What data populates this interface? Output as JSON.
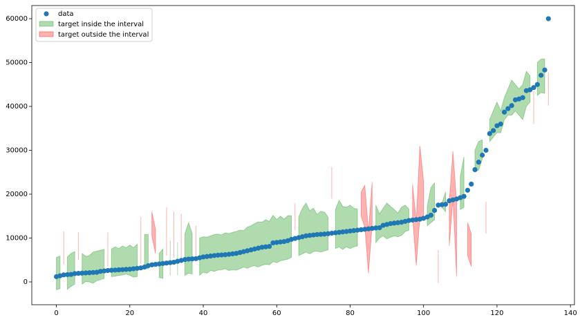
{
  "chart_data": {
    "type": "scatter_interval",
    "x": [
      0,
      1,
      2,
      3,
      4,
      5,
      6,
      7,
      8,
      9,
      10,
      11,
      12,
      13,
      14,
      15,
      16,
      17,
      18,
      19,
      20,
      21,
      22,
      23,
      24,
      25,
      26,
      27,
      28,
      29,
      30,
      31,
      32,
      33,
      34,
      35,
      36,
      37,
      38,
      39,
      40,
      41,
      42,
      43,
      44,
      45,
      46,
      47,
      48,
      49,
      50,
      51,
      52,
      53,
      54,
      55,
      56,
      57,
      58,
      59,
      60,
      61,
      62,
      63,
      64,
      65,
      66,
      67,
      68,
      69,
      70,
      71,
      72,
      73,
      74,
      75,
      76,
      77,
      78,
      79,
      80,
      81,
      82,
      83,
      84,
      85,
      86,
      87,
      88,
      89,
      90,
      91,
      92,
      93,
      94,
      95,
      96,
      97,
      98,
      99,
      100,
      101,
      102,
      103,
      104,
      105,
      106,
      107,
      108,
      109,
      110,
      111,
      112,
      113,
      114,
      115,
      116,
      117,
      118,
      119,
      120,
      121,
      122,
      123,
      124,
      125,
      126,
      127,
      128,
      129,
      130,
      131,
      132,
      133,
      134
    ],
    "series": [
      {
        "name": "data",
        "color": "#1f77b4",
        "values": [
          1200,
          1400,
          1600,
          1650,
          1700,
          1900,
          1950,
          2000,
          2050,
          2100,
          2150,
          2200,
          2400,
          2500,
          2600,
          2650,
          2700,
          2750,
          2800,
          2850,
          2900,
          3000,
          3100,
          3200,
          3400,
          3700,
          3900,
          4000,
          4100,
          4200,
          4300,
          4400,
          4500,
          4700,
          4900,
          5100,
          5200,
          5250,
          5300,
          5500,
          5700,
          5800,
          5900,
          6000,
          6100,
          6150,
          6200,
          6300,
          6400,
          6500,
          6700,
          6900,
          7100,
          7300,
          7500,
          7700,
          7900,
          8000,
          8100,
          8900,
          9000,
          9100,
          9200,
          9400,
          9700,
          9900,
          10100,
          10300,
          10500,
          10600,
          10700,
          10800,
          10850,
          10900,
          11000,
          11100,
          11200,
          11300,
          11400,
          11500,
          11600,
          11700,
          11800,
          11900,
          12000,
          12100,
          12200,
          12300,
          12350,
          12900,
          13100,
          13300,
          13400,
          13500,
          13600,
          13800,
          14000,
          14100,
          14200,
          14300,
          14500,
          14800,
          15200,
          16300,
          17500,
          17600,
          17700,
          18500,
          18700,
          18900,
          19200,
          19500,
          20900,
          22300,
          25600,
          27300,
          28900,
          30000,
          33800,
          34500,
          35600,
          36000,
          38700,
          39500,
          40200,
          41500,
          41700,
          42000,
          43600,
          43800,
          44300,
          45000,
          47100,
          48300,
          60000
        ]
      }
    ],
    "intervals": {
      "lower": [
        -1800,
        -1500,
        4000,
        -1700,
        -1000,
        -500,
        5000,
        -500,
        100,
        0,
        -300,
        300,
        500,
        800,
        3500,
        1200,
        1300,
        1500,
        1600,
        1800,
        1500,
        1100,
        1200,
        4000,
        3000,
        3000,
        10500,
        6500,
        1000,
        800,
        6000,
        1500,
        5500,
        1500,
        5000,
        1500,
        2000,
        1800,
        5800,
        1500,
        2200,
        2000,
        2600,
        2400,
        2700,
        2800,
        3000,
        2600,
        2800,
        2700,
        3000,
        3400,
        3100,
        3500,
        3700,
        3400,
        3800,
        4000,
        3900,
        4600,
        4400,
        4800,
        5000,
        5200,
        5600,
        11800,
        6000,
        6400,
        6800,
        6400,
        6900,
        7000,
        6800,
        7100,
        7300,
        19000,
        7600,
        8000,
        7400,
        8000,
        7600,
        8000,
        8200,
        15000,
        12500,
        2000,
        13000,
        9000,
        10000,
        10500,
        9800,
        10200,
        10500,
        10300,
        10600,
        11500,
        11800,
        15000,
        3700,
        14800,
        14800,
        12800,
        13500,
        14200,
        -200,
        17000,
        16000,
        8200,
        19000,
        1200,
        16500,
        17000,
        6000,
        3500,
        25000,
        25500,
        28000,
        11000,
        32000,
        33000,
        34000,
        34000,
        37000,
        38000,
        38000,
        39000,
        38000,
        37000,
        40000,
        41000,
        36000,
        42500,
        43200,
        43000,
        40200
      ],
      "upper": [
        5600,
        5900,
        11500,
        5700,
        6500,
        6900,
        11300,
        6500,
        5800,
        6000,
        6800,
        7000,
        7200,
        7400,
        11300,
        7500,
        8000,
        7600,
        8200,
        7800,
        8400,
        7800,
        8600,
        14800,
        10800,
        10800,
        16000,
        12000,
        6500,
        7500,
        17000,
        9500,
        16000,
        9000,
        15500,
        11000,
        13500,
        11000,
        12800,
        10000,
        10300,
        10200,
        10500,
        10800,
        10900,
        10700,
        11200,
        11000,
        11300,
        11500,
        11800,
        11700,
        12500,
        12800,
        13300,
        13700,
        13600,
        14200,
        13800,
        15200,
        14200,
        15000,
        14300,
        15100,
        15100,
        18000,
        14800,
        16800,
        18000,
        16200,
        16800,
        15400,
        16100,
        15900,
        14800,
        26200,
        16500,
        18600,
        17200,
        17000,
        17500,
        16800,
        16600,
        20500,
        22000,
        11500,
        22800,
        17500,
        15500,
        16800,
        18000,
        17200,
        16500,
        15700,
        17000,
        17500,
        16600,
        22300,
        13800,
        31000,
        23000,
        17200,
        21500,
        22600,
        7300,
        17900,
        20500,
        18300,
        29800,
        18000,
        24000,
        28500,
        13500,
        11000,
        30000,
        32000,
        32400,
        18300,
        37000,
        39000,
        41000,
        39000,
        42000,
        44000,
        46000,
        45000,
        44000,
        45000,
        48000,
        47000,
        43500,
        50000,
        50800,
        50800,
        47800
      ],
      "inside": {
        "name": "target inside the interval",
        "color": "#2ca02c"
      },
      "outside": {
        "name": "target outside the interval",
        "color": "#ff0000"
      }
    },
    "xlim": [
      -6.7,
      141.1
    ],
    "ylim": [
      -5200,
      63000
    ],
    "xticks": [
      0,
      20,
      40,
      60,
      80,
      100,
      120,
      140
    ],
    "yticks": [
      0,
      10000,
      20000,
      30000,
      40000,
      50000,
      60000
    ],
    "legend": "upper left"
  }
}
